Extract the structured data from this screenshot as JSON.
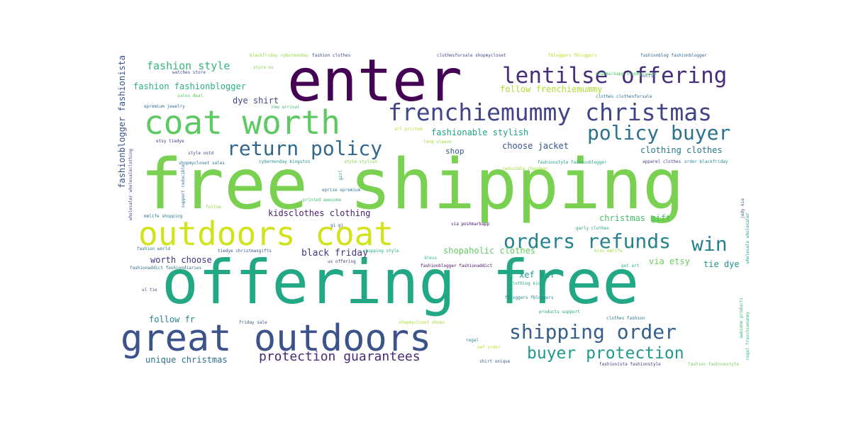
{
  "words": [
    {
      "text": "free shipping",
      "color": "#7ad151"
    },
    {
      "text": "offering free",
      "color": "#22a884"
    },
    {
      "text": "enter",
      "color": "#440154"
    },
    {
      "text": "great outdoors",
      "color": "#3b528b"
    },
    {
      "text": "outdoors coat",
      "color": "#d2e21b"
    },
    {
      "text": "coat worth",
      "color": "#5ec962"
    },
    {
      "text": "frenchiemummy christmas",
      "color": "#414487"
    },
    {
      "text": "lentilse offering",
      "color": "#472d7b"
    },
    {
      "text": "return policy",
      "color": "#31688e"
    },
    {
      "text": "policy buyer",
      "color": "#2c728e"
    },
    {
      "text": "shipping order",
      "color": "#355f8d"
    },
    {
      "text": "orders refunds",
      "color": "#26828e"
    },
    {
      "text": "win",
      "color": "#27808e"
    },
    {
      "text": "buyer protection",
      "color": "#1f9a8a"
    },
    {
      "text": "protection guarantees",
      "color": "#482878"
    },
    {
      "text": "fashion style",
      "color": "#35b779"
    },
    {
      "text": "fashion fashionblogger",
      "color": "#2ab07f"
    },
    {
      "text": "follow frenchiemummy",
      "color": "#addc30"
    },
    {
      "text": "dye shirt",
      "color": "#3e4989"
    },
    {
      "text": "fashionable stylish",
      "color": "#20a486"
    },
    {
      "text": "choose jacket",
      "color": "#3a548c"
    },
    {
      "text": "clothing clothes",
      "color": "#2a788e"
    },
    {
      "text": "shop",
      "color": "#38588c"
    },
    {
      "text": "kidsclothes clothing",
      "color": "#481f70"
    },
    {
      "text": "christmas gift",
      "color": "#4ac16d"
    },
    {
      "text": "shopaholic clothes",
      "color": "#63cb5f"
    },
    {
      "text": "black friday",
      "color": "#453781"
    },
    {
      "text": "worth choose",
      "color": "#46327e"
    },
    {
      "text": "via etsy",
      "color": "#6ccd5a"
    },
    {
      "text": "tie dye",
      "color": "#21918c"
    },
    {
      "text": "xef xef",
      "color": "#1e9c89"
    },
    {
      "text": "follow fr",
      "color": "#25848e"
    },
    {
      "text": "unique christmas",
      "color": "#2d708e"
    },
    {
      "text": "fashionblogger fashionista",
      "color": "#39568c"
    },
    {
      "text": "blackfriday cybermonday",
      "color": "#95d840"
    },
    {
      "text": "fashion clothes",
      "color": "#404688"
    },
    {
      "text": "clothesforsale shopmycloset",
      "color": "#3f4788"
    },
    {
      "text": "fbloggers fbloggers",
      "color": "#bade28"
    },
    {
      "text": "fashionblog fashionblogger",
      "color": "#32658e"
    },
    {
      "text": "watches store",
      "color": "#3c4f8a"
    },
    {
      "text": "store us",
      "color": "#7fd34e"
    },
    {
      "text": "sales deal",
      "color": "#5cc863"
    },
    {
      "text": "new arrival",
      "color": "#3dbc74"
    },
    {
      "text": "epremium jewelry",
      "color": "#2f6c8e"
    },
    {
      "text": "art printed",
      "color": "#b8de29"
    },
    {
      "text": "long sleeve",
      "color": "#9bd93c"
    },
    {
      "text": "poshmarkapp shopmycloset",
      "color": "#52c569"
    },
    {
      "text": "outfit",
      "color": "#34618d"
    },
    {
      "text": "clothes clothesforsale",
      "color": "#2e6f8e"
    },
    {
      "text": "style ootd",
      "color": "#3b518b"
    },
    {
      "text": "etsy tiedye",
      "color": "#443983"
    },
    {
      "text": "shopmycloset sales",
      "color": "#2b748e"
    },
    {
      "text": "cybermonday kingston",
      "color": "#1f958b"
    },
    {
      "text": "style stylish",
      "color": "#86d549"
    },
    {
      "text": "fashionstyle fashionblogger",
      "color": "#1fa188"
    },
    {
      "text": "apparel clothes",
      "color": "#414287"
    },
    {
      "text": "order blackfriday",
      "color": "#24878e"
    },
    {
      "text": "wholesaler wholesaleclothing",
      "color": "#433e85"
    },
    {
      "text": "support reducible",
      "color": "#306a8e"
    },
    {
      "text": "reducible rhandeer",
      "color": "#a5db36"
    },
    {
      "text": "eprize epremium",
      "color": "#287c8e"
    },
    {
      "text": "printed awesome",
      "color": "#3fbc73"
    },
    {
      "text": "gi gi",
      "color": "#365c8d"
    },
    {
      "text": "girl",
      "color": "#287d8e"
    },
    {
      "text": "mmlife shopping",
      "color": "#29798e"
    },
    {
      "text": "follow",
      "color": "#91d742"
    },
    {
      "text": "via poshmarkapp",
      "color": "#440f76"
    },
    {
      "text": "garly clothes",
      "color": "#22a785"
    },
    {
      "text": "kids mmlife",
      "color": "#a2da37"
    },
    {
      "text": "fashion world",
      "color": "#2c718e"
    },
    {
      "text": "tiedye christmasgifts",
      "color": "#3a538b"
    },
    {
      "text": "dress",
      "color": "#2fb47c"
    },
    {
      "text": "shopping style",
      "color": "#24aa83"
    },
    {
      "text": "fashionaddict fashiondiaries",
      "color": "#2d708e"
    },
    {
      "text": "us offering",
      "color": "#433d84"
    },
    {
      "text": "fashionblogger fashionaddict",
      "color": "#471164"
    },
    {
      "text": "get art",
      "color": "#2eb37c"
    },
    {
      "text": "ul tie",
      "color": "#3c4f8a"
    },
    {
      "text": "clothing kids",
      "color": "#21a685"
    },
    {
      "text": "fbloggers fbloggers",
      "color": "#23898e"
    },
    {
      "text": "friday sale",
      "color": "#3b528b"
    },
    {
      "text": "products support",
      "color": "#1fa287"
    },
    {
      "text": "clothes fashion",
      "color": "#2b758e"
    },
    {
      "text": "shopmycloset shoes",
      "color": "#a8db34"
    },
    {
      "text": "regal",
      "color": "#24868e"
    },
    {
      "text": "xef order",
      "color": "#bddf26"
    },
    {
      "text": "shirt unique",
      "color": "#355e8d"
    },
    {
      "text": "fashionista fashionstyle",
      "color": "#424186"
    },
    {
      "text": "fashion fashionstyle",
      "color": "#75d054"
    },
    {
      "text": "jody kio",
      "color": "#3b518b"
    },
    {
      "text": "wholesale wholesaler",
      "color": "#1e9b8a"
    },
    {
      "text": "awesome products",
      "color": "#34b679"
    },
    {
      "text": "regal frenchiemummy",
      "color": "#31b57b"
    }
  ]
}
